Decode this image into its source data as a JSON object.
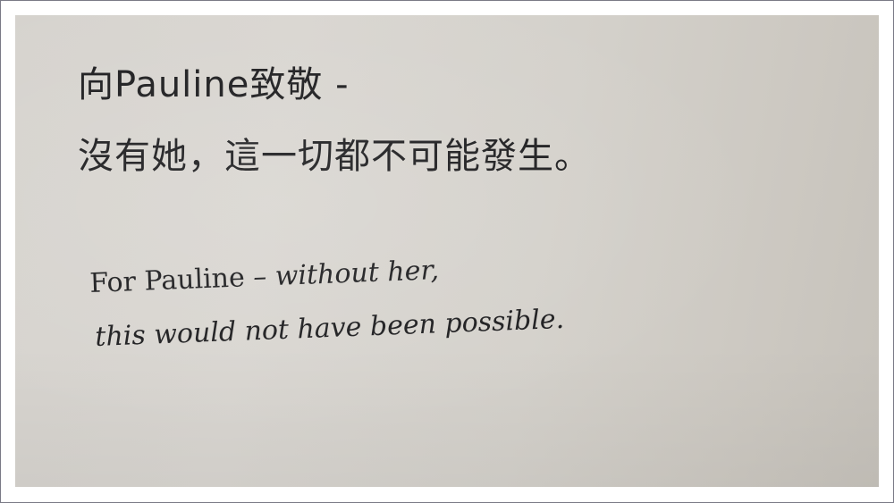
{
  "sign": {
    "chinese_line_1": "向Pauline致敬 -",
    "chinese_line_2": "沒有她，這一切都不可能發生。",
    "english_line_1_upright": "For Pauline",
    "english_line_1_italic": " – without her,",
    "english_line_2": "this would not have been possible."
  }
}
